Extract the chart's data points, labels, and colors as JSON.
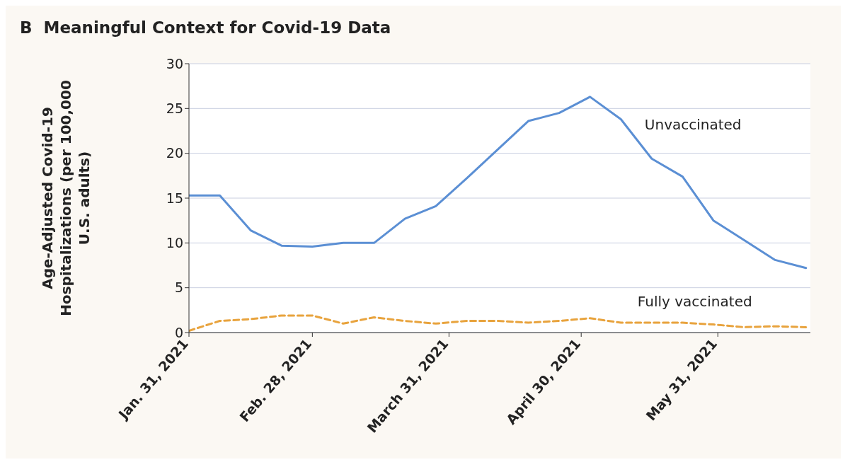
{
  "chart_data": {
    "type": "line",
    "title": "B  Meaningful Context for Covid-19 Data",
    "ylabel": "Age-Adjusted Covid-19 Hospitalizations (per 100,000 U.S. adults)",
    "x": [
      "2021-01-31",
      "2021-02-07",
      "2021-02-14",
      "2021-02-21",
      "2021-02-28",
      "2021-03-07",
      "2021-03-14",
      "2021-03-21",
      "2021-03-28",
      "2021-04-04",
      "2021-04-11",
      "2021-04-18",
      "2021-04-25",
      "2021-05-02",
      "2021-05-09",
      "2021-05-16",
      "2021-05-23",
      "2021-05-30",
      "2021-06-06",
      "2021-06-13",
      "2021-06-20"
    ],
    "series": [
      {
        "name": "Unvaccinated",
        "color": "#5b8fd4",
        "line_style": "solid",
        "values": [
          15.3,
          15.3,
          11.4,
          9.7,
          9.6,
          10.0,
          10.0,
          12.7,
          14.1,
          17.2,
          20.4,
          23.6,
          24.5,
          26.3,
          23.8,
          19.4,
          17.4,
          12.5,
          10.3,
          8.1,
          7.2
        ]
      },
      {
        "name": "Fully vaccinated",
        "color": "#e8a33d",
        "line_style": "dashed",
        "values": [
          0.2,
          1.3,
          1.5,
          1.9,
          1.9,
          1.0,
          1.7,
          1.3,
          1.0,
          1.3,
          1.3,
          1.1,
          1.3,
          1.6,
          1.1,
          1.1,
          1.1,
          0.9,
          0.6,
          0.7,
          0.6
        ]
      }
    ],
    "xlim": [
      "2021-01-31",
      "2021-06-21"
    ],
    "xticks": [
      {
        "value": "2021-01-31",
        "label": "Jan. 31, 2021"
      },
      {
        "value": "2021-02-28",
        "label": "Feb. 28, 2021"
      },
      {
        "value": "2021-03-31",
        "label": "March 31, 2021"
      },
      {
        "value": "2021-04-30",
        "label": "April 30, 2021"
      },
      {
        "value": "2021-05-31",
        "label": "May 31, 2021"
      }
    ],
    "ylim": [
      0,
      30
    ],
    "yticks": [
      0,
      5,
      10,
      15,
      20,
      25,
      30
    ],
    "grid": "y"
  }
}
